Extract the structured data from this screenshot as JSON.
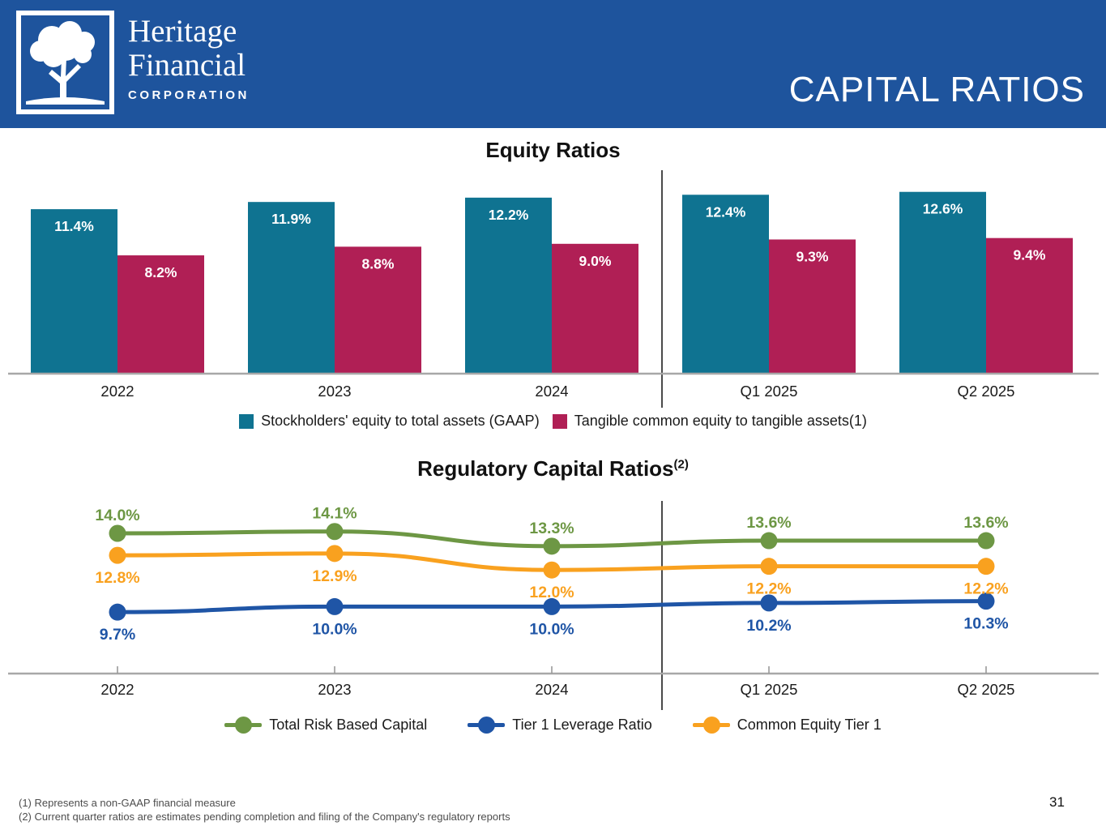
{
  "header": {
    "logo_line1": "Heritage",
    "logo_line2": "Financial",
    "logo_line3": "CORPORATION",
    "title": "CAPITAL RATIOS"
  },
  "colors": {
    "header_bg": "#1E549D",
    "teal": "#0F7391",
    "crimson": "#B01F55",
    "green": "#6D9744",
    "blue": "#1F55A6",
    "orange": "#F9A11F",
    "axis": "#A8A8A8",
    "tick": "#9A9A9A",
    "divider": "#4A4A4A"
  },
  "chart_data": [
    {
      "type": "bar",
      "title": "Equity Ratios",
      "categories": [
        "2022",
        "2023",
        "2024",
        "Q1 2025",
        "Q2 2025"
      ],
      "series": [
        {
          "name": "Stockholders' equity to total assets (GAAP)",
          "color": "#0F7391",
          "values": [
            11.4,
            11.9,
            12.2,
            12.4,
            12.6
          ]
        },
        {
          "name": "Tangible common equity to tangible assets(1)",
          "color": "#B01F55",
          "values": [
            8.2,
            8.8,
            9.0,
            9.3,
            9.4
          ]
        }
      ],
      "value_suffix": "%",
      "ylim": [
        0,
        14
      ],
      "grid": false,
      "divider_between": [
        "2024",
        "Q1 2025"
      ],
      "legend_position": "bottom"
    },
    {
      "type": "line",
      "title": "Regulatory Capital Ratios",
      "title_superscript": "(2)",
      "categories": [
        "2022",
        "2023",
        "2024",
        "Q1 2025",
        "Q2 2025"
      ],
      "series": [
        {
          "name": "Total Risk Based Capital",
          "color": "#6D9744",
          "values": [
            14.0,
            14.1,
            13.3,
            13.6,
            13.6
          ],
          "label_position": "above"
        },
        {
          "name": "Tier 1 Leverage Ratio",
          "color": "#1F55A6",
          "values": [
            9.7,
            10.0,
            10.0,
            10.2,
            10.3
          ],
          "label_position": "below"
        },
        {
          "name": "Common Equity Tier 1",
          "color": "#F9A11F",
          "values": [
            12.8,
            12.9,
            12.0,
            12.2,
            12.2
          ],
          "label_position": "below"
        }
      ],
      "value_suffix": "%",
      "ylim": [
        9,
        15
      ],
      "grid": false,
      "divider_between": [
        "2024",
        "Q1 2025"
      ],
      "legend_position": "bottom"
    }
  ],
  "footnotes": [
    "(1) Represents a non-GAAP financial measure",
    "(2) Current quarter ratios are estimates pending completion and filing of the Company's regulatory reports"
  ],
  "page_number": "31"
}
